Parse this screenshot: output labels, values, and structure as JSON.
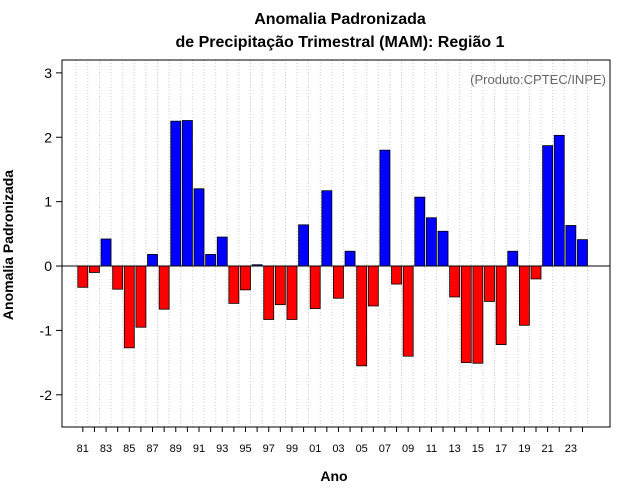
{
  "chart_data": {
    "type": "bar",
    "title_line1": "Anomalia Padronizada",
    "title_line2": "de Precipitação Trimestral (MAM): Região 1",
    "xlabel": "Ano",
    "ylabel": "Anomalia Padronizada",
    "credit": "(Produto:CPTEC/INPE)",
    "ylim": [
      -2.5,
      3.2
    ],
    "yticks": [
      "-2",
      "-1",
      "0",
      "1",
      "2",
      "3"
    ],
    "ytick_values": [
      -2,
      -1,
      0,
      1,
      2,
      3
    ],
    "grid": "vertical dotted",
    "positive_color": "#0000ff",
    "negative_color": "#ff0000",
    "categories": [
      "81",
      "82",
      "83",
      "84",
      "85",
      "86",
      "87",
      "88",
      "89",
      "90",
      "91",
      "92",
      "93",
      "94",
      "95",
      "96",
      "97",
      "98",
      "99",
      "00",
      "01",
      "02",
      "03",
      "04",
      "05",
      "06",
      "07",
      "08",
      "09",
      "10",
      "11",
      "12",
      "13",
      "14",
      "15",
      "16",
      "17",
      "18",
      "19",
      "20",
      "21",
      "22",
      "23",
      "24"
    ],
    "tick_labels": [
      "81",
      "83",
      "85",
      "87",
      "89",
      "91",
      "93",
      "95",
      "97",
      "99",
      "01",
      "03",
      "05",
      "07",
      "09",
      "11",
      "13",
      "15",
      "17",
      "19",
      "21",
      "23"
    ],
    "values": [
      -0.33,
      -0.1,
      0.42,
      -0.36,
      -1.27,
      -0.95,
      0.18,
      -0.67,
      2.25,
      2.26,
      1.2,
      0.18,
      0.45,
      -0.58,
      -0.37,
      0.02,
      -0.83,
      -0.6,
      -0.83,
      0.64,
      -0.66,
      1.17,
      -0.5,
      0.23,
      -1.55,
      -0.62,
      1.8,
      -0.28,
      -1.4,
      1.07,
      0.75,
      0.54,
      -0.48,
      -1.5,
      -1.51,
      -0.55,
      -1.22,
      0.23,
      -0.92,
      -0.2,
      1.87,
      2.03,
      0.63,
      0.41
    ]
  }
}
